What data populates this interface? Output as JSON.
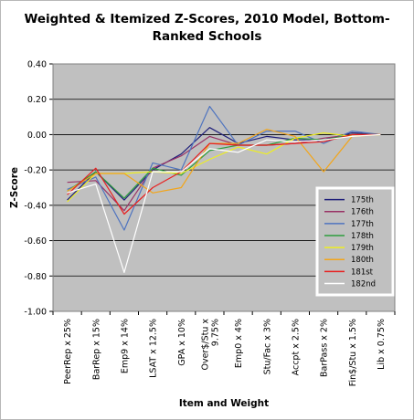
{
  "chart_data": {
    "type": "line",
    "title": "Weighted & Itemized Z-Scores, 2010 Model, Bottom-Ranked Schools",
    "xlabel": "Item and Weight",
    "ylabel": "Z-Score",
    "ylim": [
      -1.0,
      0.4
    ],
    "yticks": [
      "0.40",
      "0.20",
      "0.00",
      "-0.20",
      "-0.40",
      "-0.60",
      "-0.80",
      "-1.00"
    ],
    "grid": "horizontal",
    "legend_position": "right",
    "categories": [
      "PeerRep x 25%",
      "BarRep x 15%",
      "Emp9 x 14%",
      "LSAT x 12.5%",
      "GPA x 10%",
      "Over$/Stu x 9.75%",
      "Emp0 x 4%",
      "Stu/Fac x 3%",
      "Accpt x 2.5%",
      "BarPass x 2%",
      "Fin$/Stu x 1.5%",
      "Lib x 0.75%"
    ],
    "series": [
      {
        "name": "175th",
        "color": "#1f1f7a",
        "values": [
          -0.37,
          -0.21,
          -0.37,
          -0.2,
          -0.11,
          0.04,
          -0.05,
          -0.01,
          -0.03,
          -0.03,
          0.01,
          0.0
        ]
      },
      {
        "name": "176th",
        "color": "#993366",
        "values": [
          -0.27,
          -0.26,
          -0.43,
          -0.19,
          -0.12,
          -0.01,
          -0.06,
          -0.06,
          -0.05,
          -0.02,
          0.0,
          0.0
        ]
      },
      {
        "name": "177th",
        "color": "#4f74bf",
        "values": [
          -0.31,
          -0.24,
          -0.54,
          -0.16,
          -0.2,
          0.16,
          -0.06,
          0.02,
          0.02,
          -0.05,
          0.02,
          0.0
        ]
      },
      {
        "name": "178th",
        "color": "#2e9e3e",
        "values": [
          -0.32,
          -0.21,
          -0.36,
          -0.19,
          -0.23,
          -0.09,
          -0.06,
          -0.06,
          -0.02,
          -0.03,
          0.0,
          0.0
        ]
      },
      {
        "name": "179th",
        "color": "#eeee22",
        "values": [
          -0.38,
          -0.22,
          -0.22,
          -0.21,
          -0.22,
          -0.14,
          -0.07,
          -0.11,
          -0.02,
          0.01,
          -0.01,
          0.0
        ]
      },
      {
        "name": "180th",
        "color": "#f2a51a",
        "values": [
          -0.32,
          -0.22,
          -0.22,
          -0.33,
          -0.3,
          -0.05,
          -0.05,
          0.03,
          -0.01,
          -0.21,
          -0.01,
          0.0
        ]
      },
      {
        "name": "181st",
        "color": "#e82020",
        "values": [
          -0.34,
          -0.19,
          -0.45,
          -0.3,
          -0.21,
          -0.05,
          -0.06,
          -0.06,
          -0.05,
          -0.04,
          0.0,
          0.0
        ]
      },
      {
        "name": "182nd",
        "color": "#ffffff",
        "values": [
          -0.33,
          -0.28,
          -0.78,
          -0.21,
          -0.21,
          -0.08,
          -0.1,
          -0.03,
          -0.04,
          -0.03,
          -0.01,
          0.0
        ]
      }
    ]
  }
}
